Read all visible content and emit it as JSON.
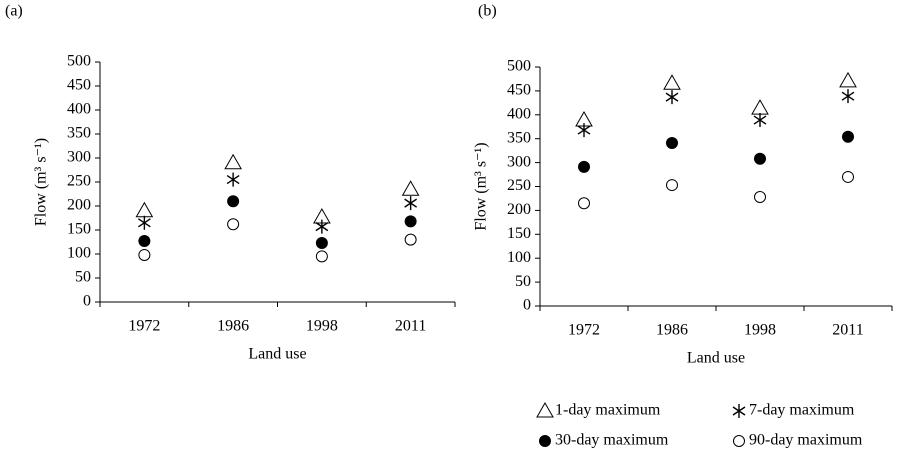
{
  "chart_data": [
    {
      "type": "scatter",
      "panel": "(a)",
      "x_label": "Land use",
      "y_label": "Flow (m³ s⁻¹)",
      "categories": [
        "1972",
        "1986",
        "1998",
        "2011"
      ],
      "ylim": [
        0,
        500
      ],
      "yticks": [
        0,
        50,
        100,
        150,
        200,
        250,
        300,
        350,
        400,
        450,
        500
      ],
      "series": [
        {
          "name": "1-day maximum",
          "marker": "triangle",
          "color": "#000000",
          "values": [
            190,
            290,
            177,
            235
          ]
        },
        {
          "name": "7-day maximum",
          "marker": "asterisk",
          "color": "#000000",
          "values": [
            165,
            255,
            157,
            206
          ]
        },
        {
          "name": "30-day maximum",
          "marker": "filled-circle",
          "color": "#000000",
          "values": [
            127,
            210,
            123,
            168
          ]
        },
        {
          "name": "90-day maximum",
          "marker": "open-circle",
          "color": "#000000",
          "values": [
            98,
            162,
            95,
            130
          ]
        }
      ]
    },
    {
      "type": "scatter",
      "panel": "(b)",
      "x_label": "Land use",
      "y_label": "Flow (m³ s⁻¹)",
      "categories": [
        "1972",
        "1986",
        "1998",
        "2011"
      ],
      "ylim": [
        0,
        500
      ],
      "yticks": [
        0,
        50,
        100,
        150,
        200,
        250,
        300,
        350,
        400,
        450,
        500
      ],
      "legend": "bottom",
      "series": [
        {
          "name": "1-day maximum",
          "marker": "triangle",
          "color": "#000000",
          "values": [
            389,
            466,
            414,
            471
          ]
        },
        {
          "name": "7-day maximum",
          "marker": "asterisk",
          "color": "#000000",
          "values": [
            368,
            437,
            389,
            439
          ]
        },
        {
          "name": "30-day maximum",
          "marker": "filled-circle",
          "color": "#000000",
          "values": [
            291,
            341,
            308,
            354
          ]
        },
        {
          "name": "90-day maximum",
          "marker": "open-circle",
          "color": "#000000",
          "values": [
            215,
            253,
            228,
            270
          ]
        }
      ]
    }
  ]
}
